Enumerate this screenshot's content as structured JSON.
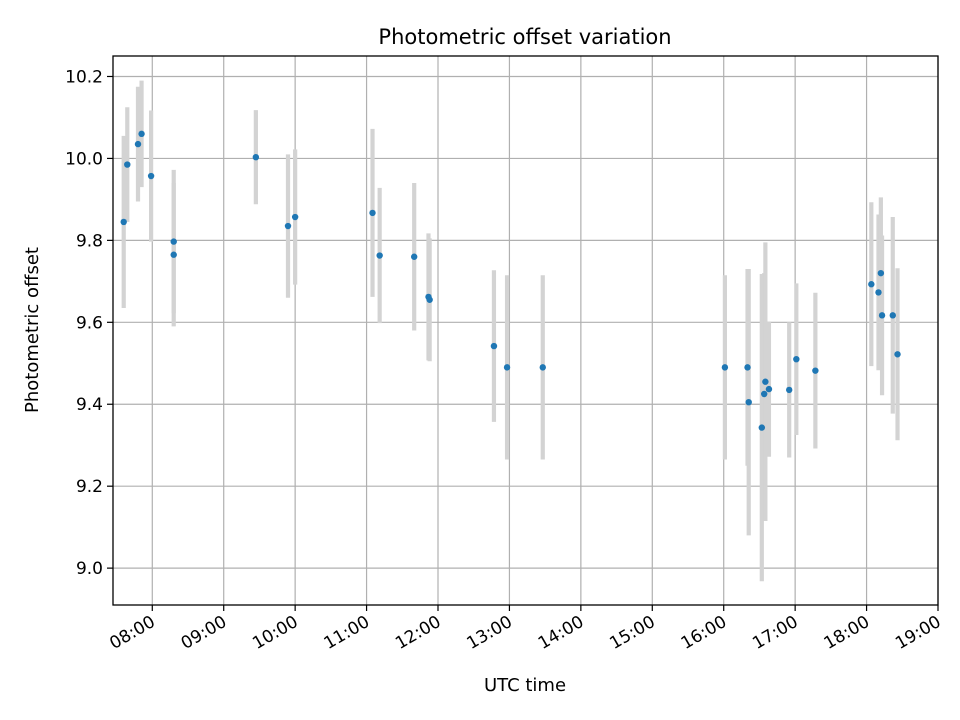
{
  "chart_data": {
    "type": "scatter",
    "title": "Photometric offset variation",
    "xlabel": "UTC time",
    "ylabel": "Photometric offset",
    "x_unit": "UTC hour",
    "xlim": [
      "07:27",
      "19:00"
    ],
    "ylim": [
      8.91,
      10.25
    ],
    "grid": true,
    "x_ticks": [
      "08:00",
      "09:00",
      "10:00",
      "11:00",
      "12:00",
      "13:00",
      "14:00",
      "15:00",
      "16:00",
      "17:00",
      "18:00",
      "19:00"
    ],
    "y_ticks": [
      "9.0",
      "9.2",
      "9.4",
      "9.6",
      "9.8",
      "10.0",
      "10.2"
    ],
    "colors": {
      "points": "#1f77b4",
      "errorbars": "#d3d3d3",
      "grid": "#b0b0b0"
    },
    "points": [
      {
        "x": "07:36",
        "y": 9.845,
        "err": 0.21
      },
      {
        "x": "07:39",
        "y": 9.985,
        "err": 0.14
      },
      {
        "x": "07:48",
        "y": 10.035,
        "err": 0.14
      },
      {
        "x": "07:51",
        "y": 10.06,
        "err": 0.13
      },
      {
        "x": "07:59",
        "y": 9.957,
        "err": 0.16
      },
      {
        "x": "08:18",
        "y": 9.797,
        "err": 0.175
      },
      {
        "x": "08:18",
        "y": 9.765,
        "err": 0.175
      },
      {
        "x": "09:27",
        "y": 10.003,
        "err": 0.115
      },
      {
        "x": "09:54",
        "y": 9.835,
        "err": 0.175
      },
      {
        "x": "10:00",
        "y": 9.857,
        "err": 0.165
      },
      {
        "x": "11:05",
        "y": 9.867,
        "err": 0.205
      },
      {
        "x": "11:11",
        "y": 9.763,
        "err": 0.165
      },
      {
        "x": "11:40",
        "y": 9.76,
        "err": 0.18
      },
      {
        "x": "11:52",
        "y": 9.662,
        "err": 0.155
      },
      {
        "x": "11:53",
        "y": 9.655,
        "err": 0.15
      },
      {
        "x": "12:47",
        "y": 9.542,
        "err": 0.185
      },
      {
        "x": "12:58",
        "y": 9.49,
        "err": 0.225
      },
      {
        "x": "13:28",
        "y": 9.49,
        "err": 0.225
      },
      {
        "x": "16:01",
        "y": 9.49,
        "err": 0.225
      },
      {
        "x": "16:20",
        "y": 9.49,
        "err": 0.24
      },
      {
        "x": "16:21",
        "y": 9.405,
        "err": 0.325
      },
      {
        "x": "16:32",
        "y": 9.343,
        "err": 0.375
      },
      {
        "x": "16:34",
        "y": 9.425,
        "err": 0.295
      },
      {
        "x": "16:35",
        "y": 9.455,
        "err": 0.34
      },
      {
        "x": "16:38",
        "y": 9.437,
        "err": 0.165
      },
      {
        "x": "16:55",
        "y": 9.435,
        "err": 0.165
      },
      {
        "x": "17:01",
        "y": 9.51,
        "err": 0.185
      },
      {
        "x": "17:17",
        "y": 9.482,
        "err": 0.19
      },
      {
        "x": "18:04",
        "y": 9.693,
        "err": 0.2
      },
      {
        "x": "18:10",
        "y": 9.673,
        "err": 0.19
      },
      {
        "x": "18:12",
        "y": 9.72,
        "err": 0.185
      },
      {
        "x": "18:13",
        "y": 9.617,
        "err": 0.195
      },
      {
        "x": "18:22",
        "y": 9.617,
        "err": 0.24
      },
      {
        "x": "18:26",
        "y": 9.522,
        "err": 0.21
      }
    ]
  }
}
